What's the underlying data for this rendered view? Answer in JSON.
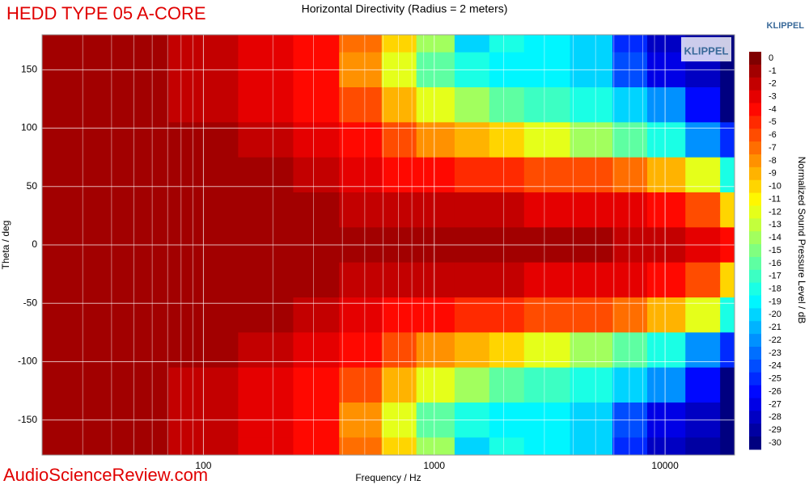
{
  "chart_data": {
    "type": "heatmap",
    "title": "Horizontal Directivity (Radius = 2 meters)",
    "product": "HEDD TYPE 05 A-CORE",
    "brand": "KLIPPEL",
    "logo": "KLIPPEL",
    "watermark": "AudioScienceReview.com",
    "x_label": "Frequency / Hz",
    "y_label": "Theta / deg",
    "colorbar_label": "Normalized Sound Pressure Level / dB",
    "xlog": true,
    "xlim": [
      20,
      20000
    ],
    "xticks": [
      100,
      1000,
      10000
    ],
    "xminorticks": [
      20,
      30,
      40,
      50,
      60,
      70,
      80,
      90,
      200,
      300,
      400,
      500,
      600,
      700,
      800,
      900,
      2000,
      3000,
      4000,
      5000,
      6000,
      7000,
      8000,
      9000
    ],
    "ylim": [
      -180,
      180
    ],
    "yticks": [
      -150,
      -100,
      -50,
      0,
      50,
      100,
      150
    ],
    "grid": true,
    "clim": [
      -30,
      0
    ],
    "cticks": [
      0,
      -1,
      -2,
      -3,
      -4,
      -5,
      -6,
      -7,
      -8,
      -9,
      -10,
      -11,
      -12,
      -13,
      -14,
      -15,
      -16,
      -17,
      -18,
      -19,
      -20,
      -21,
      -22,
      -23,
      -24,
      -25,
      -26,
      -27,
      -28,
      -29,
      -30
    ],
    "x": [
      20,
      50,
      100,
      200,
      300,
      500,
      700,
      1000,
      1500,
      2000,
      3000,
      5000,
      7000,
      10000,
      15000,
      20000
    ],
    "y": [
      180,
      150,
      120,
      90,
      60,
      30,
      0,
      -30,
      -60,
      -90,
      -120,
      -150,
      -180
    ],
    "z": [
      [
        -1,
        -1,
        -2,
        -3,
        -4,
        -7,
        -10,
        -14,
        -20,
        -18,
        -19,
        -20,
        -25,
        -28,
        -29,
        -30
      ],
      [
        -1,
        -1,
        -2,
        -3,
        -4,
        -8,
        -12,
        -16,
        -18,
        -19,
        -19,
        -20,
        -24,
        -27,
        -28,
        -30
      ],
      [
        -1,
        -1,
        -2,
        -3,
        -4,
        -6,
        -9,
        -12,
        -14,
        -16,
        -17,
        -18,
        -20,
        -22,
        -26,
        -30
      ],
      [
        -1,
        -1,
        -1,
        -2,
        -3,
        -4,
        -6,
        -8,
        -9,
        -10,
        -12,
        -14,
        -16,
        -18,
        -22,
        -25
      ],
      [
        -1,
        -1,
        -1,
        -1,
        -2,
        -3,
        -4,
        -4,
        -5,
        -5,
        -6,
        -6,
        -7,
        -9,
        -12,
        -18
      ],
      [
        -1,
        -1,
        -1,
        -1,
        -1,
        -2,
        -2,
        -2,
        -2,
        -2,
        -3,
        -3,
        -3,
        -4,
        -6,
        -10
      ],
      [
        -1,
        -1,
        -1,
        -1,
        -1,
        -1,
        -1,
        -1,
        -1,
        -1,
        -1,
        -1,
        -2,
        -2,
        -3,
        -4
      ],
      [
        -1,
        -1,
        -1,
        -1,
        -1,
        -2,
        -2,
        -2,
        -2,
        -2,
        -3,
        -3,
        -3,
        -4,
        -6,
        -10
      ],
      [
        -1,
        -1,
        -1,
        -1,
        -2,
        -3,
        -4,
        -4,
        -5,
        -5,
        -6,
        -6,
        -7,
        -9,
        -12,
        -18
      ],
      [
        -1,
        -1,
        -1,
        -2,
        -3,
        -4,
        -6,
        -8,
        -9,
        -10,
        -12,
        -14,
        -16,
        -18,
        -22,
        -25
      ],
      [
        -1,
        -1,
        -2,
        -3,
        -4,
        -6,
        -9,
        -12,
        -14,
        -16,
        -17,
        -18,
        -20,
        -22,
        -26,
        -30
      ],
      [
        -1,
        -1,
        -2,
        -3,
        -4,
        -8,
        -12,
        -16,
        -18,
        -19,
        -19,
        -20,
        -24,
        -27,
        -28,
        -30
      ],
      [
        -1,
        -1,
        -2,
        -3,
        -4,
        -7,
        -10,
        -14,
        -20,
        -18,
        -19,
        -20,
        -25,
        -28,
        -29,
        -30
      ]
    ]
  }
}
